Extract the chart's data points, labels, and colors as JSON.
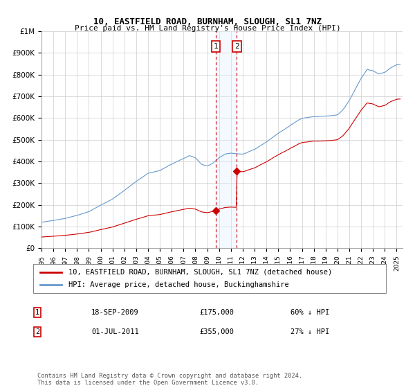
{
  "title": "10, EASTFIELD ROAD, BURNHAM, SLOUGH, SL1 7NZ",
  "subtitle": "Price paid vs. HM Land Registry's House Price Index (HPI)",
  "legend_line1": "10, EASTFIELD ROAD, BURNHAM, SLOUGH, SL1 7NZ (detached house)",
  "legend_line2": "HPI: Average price, detached house, Buckinghamshire",
  "footnote": "Contains HM Land Registry data © Crown copyright and database right 2024.\nThis data is licensed under the Open Government Licence v3.0.",
  "transaction1_date": "18-SEP-2009",
  "transaction1_price": "£175,000",
  "transaction1_pct": "60% ↓ HPI",
  "transaction2_date": "01-JUL-2011",
  "transaction2_price": "£355,000",
  "transaction2_pct": "27% ↓ HPI",
  "xlim_start": 1995.0,
  "xlim_end": 2025.5,
  "ylim_min": 0,
  "ylim_max": 1000000,
  "yticks": [
    0,
    100000,
    200000,
    300000,
    400000,
    500000,
    600000,
    700000,
    800000,
    900000,
    1000000
  ],
  "ytick_labels": [
    "£0",
    "£100K",
    "£200K",
    "£300K",
    "£400K",
    "£500K",
    "£600K",
    "£700K",
    "£800K",
    "£900K",
    "£1M"
  ],
  "xticks": [
    1995,
    1996,
    1997,
    1998,
    1999,
    2000,
    2001,
    2002,
    2003,
    2004,
    2005,
    2006,
    2007,
    2008,
    2009,
    2010,
    2011,
    2012,
    2013,
    2014,
    2015,
    2016,
    2017,
    2018,
    2019,
    2020,
    2021,
    2022,
    2023,
    2024,
    2025
  ],
  "red_line_color": "#cc0000",
  "blue_line_color": "#6699cc",
  "grid_color": "#cccccc",
  "shade_color": "#ddeeff",
  "dashed_line_color": "#cc0000",
  "marker_box_color": "#cc0000",
  "transaction1_x": 2009.72,
  "transaction2_x": 2011.5,
  "transaction1_y": 175000,
  "transaction2_y": 355000
}
